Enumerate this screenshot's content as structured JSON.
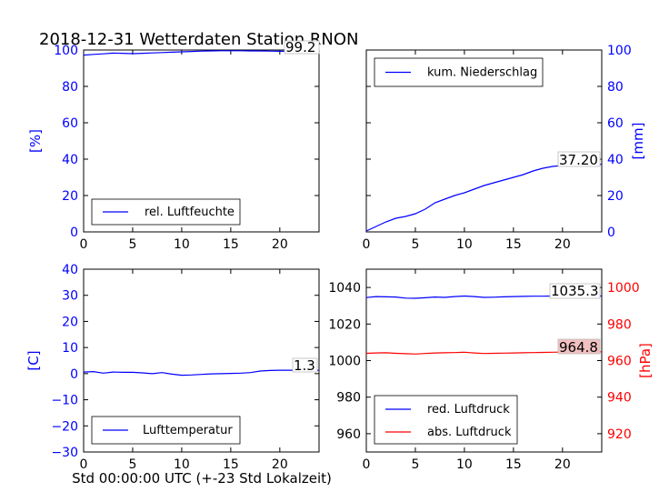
{
  "title": "2018-12-31 Wetterdaten Station RNON",
  "x_axis_label": "Std 00:00:00 UTC (+-23 Std Lokalzeit)",
  "colors": {
    "blue": "#0000ff",
    "red": "#ff0000",
    "text": "#000000",
    "callout_red_bg": "#f2c0c0"
  },
  "chart_data": [
    {
      "id": "humidity",
      "type": "line",
      "xlim": [
        0,
        24
      ],
      "ylim": [
        0,
        100
      ],
      "x_ticks": [
        0,
        5,
        10,
        15,
        20
      ],
      "y_ticks": [
        0,
        20,
        40,
        60,
        80,
        100
      ],
      "ylabel": "[%]",
      "legend": "lower-left",
      "callout": "99.2",
      "series": [
        {
          "name": "rel. Luftfeuchte",
          "color": "#0000ff",
          "x": [
            0,
            1,
            2,
            3,
            4,
            5,
            6,
            7,
            8,
            9,
            10,
            11,
            12,
            13,
            14,
            15,
            16,
            17,
            18,
            19,
            20,
            21,
            22,
            23,
            24
          ],
          "y": [
            97.2,
            97.6,
            97.9,
            98.3,
            98.2,
            98.0,
            98.2,
            98.4,
            98.6,
            98.8,
            99.0,
            99.2,
            99.4,
            99.5,
            99.6,
            99.6,
            99.6,
            99.5,
            99.5,
            99.4,
            99.3,
            99.3,
            99.2,
            99.2,
            99.2
          ]
        }
      ]
    },
    {
      "id": "precip",
      "type": "line",
      "xlim": [
        0,
        24
      ],
      "ylim": [
        0,
        100
      ],
      "x_ticks": [
        0,
        5,
        10,
        15,
        20
      ],
      "y_ticks": [
        0,
        20,
        40,
        60,
        80,
        100
      ],
      "ylabel": "[mm]",
      "legend": "upper-left",
      "callout": "37.20",
      "series": [
        {
          "name": "kum. Niederschlag",
          "color": "#0000ff",
          "x": [
            0,
            1,
            2,
            3,
            4,
            5,
            6,
            7,
            8,
            9,
            10,
            11,
            12,
            13,
            14,
            15,
            16,
            17,
            18,
            19,
            20,
            21,
            22,
            23,
            24
          ],
          "y": [
            0.5,
            3.0,
            5.5,
            7.5,
            8.5,
            10.0,
            12.5,
            16.0,
            18.0,
            20.0,
            21.5,
            23.5,
            25.5,
            27.0,
            28.5,
            30.0,
            31.5,
            33.5,
            35.0,
            36.0,
            36.5,
            37.0,
            37.2,
            37.2,
            37.2
          ]
        }
      ]
    },
    {
      "id": "temperature",
      "type": "line",
      "xlim": [
        0,
        24
      ],
      "ylim": [
        -30,
        40
      ],
      "x_ticks": [
        0,
        5,
        10,
        15,
        20
      ],
      "y_ticks": [
        -30,
        -20,
        -10,
        0,
        10,
        20,
        30,
        40
      ],
      "y_tick_labels": [
        "−30",
        "−20",
        "−10",
        "0",
        "10",
        "20",
        "30",
        "40"
      ],
      "ylabel": "[C]",
      "legend": "lower-left",
      "callout": "1.3",
      "series": [
        {
          "name": "Lufttemperatur",
          "color": "#0000ff",
          "x": [
            0,
            1,
            2,
            3,
            4,
            5,
            6,
            7,
            8,
            9,
            10,
            11,
            12,
            13,
            14,
            15,
            16,
            17,
            18,
            19,
            20,
            21,
            22,
            23,
            24
          ],
          "y": [
            0.6,
            0.8,
            0.2,
            0.6,
            0.5,
            0.5,
            0.3,
            0.0,
            0.4,
            -0.2,
            -0.6,
            -0.5,
            -0.3,
            -0.1,
            0.0,
            0.1,
            0.2,
            0.4,
            1.0,
            1.2,
            1.3,
            1.3,
            1.3,
            1.3,
            1.3
          ]
        }
      ]
    },
    {
      "id": "pressure",
      "type": "line",
      "xlim": [
        0,
        24
      ],
      "ylim": [
        950,
        1050
      ],
      "x_ticks": [
        0,
        5,
        10,
        15,
        20
      ],
      "y_ticks": [
        960,
        980,
        1000,
        1020,
        1040
      ],
      "ylabel": "",
      "legend": "lower-left",
      "secondary_axis": {
        "ylim": [
          910,
          1010
        ],
        "ticks": [
          920,
          940,
          960,
          980,
          1000
        ],
        "label": "[hPa]",
        "color": "#ff0000"
      },
      "callouts": [
        "1035.3",
        "964.8"
      ],
      "series": [
        {
          "name": "red. Luftdruck",
          "color": "#0000ff",
          "axis": "left",
          "x": [
            0,
            1,
            2,
            3,
            4,
            5,
            6,
            7,
            8,
            9,
            10,
            11,
            12,
            13,
            14,
            15,
            16,
            17,
            18,
            19,
            20,
            21,
            22,
            23,
            24
          ],
          "y": [
            1034.5,
            1035.0,
            1034.9,
            1034.8,
            1034.2,
            1034.1,
            1034.4,
            1034.8,
            1034.6,
            1035.0,
            1035.3,
            1035.0,
            1034.6,
            1034.7,
            1034.9,
            1035.0,
            1035.1,
            1035.2,
            1035.2,
            1035.3,
            1035.5,
            1035.7,
            1035.6,
            1035.4,
            1035.3
          ]
        },
        {
          "name": "abs. Luftdruck",
          "color": "#ff0000",
          "axis": "right",
          "x": [
            0,
            1,
            2,
            3,
            4,
            5,
            6,
            7,
            8,
            9,
            10,
            11,
            12,
            13,
            14,
            15,
            16,
            17,
            18,
            19,
            20,
            21,
            22,
            23,
            24
          ],
          "y": [
            964.0,
            964.2,
            964.3,
            964.0,
            963.8,
            963.6,
            963.9,
            964.2,
            964.3,
            964.4,
            964.6,
            964.2,
            963.9,
            964.0,
            964.1,
            964.2,
            964.3,
            964.4,
            964.5,
            964.6,
            964.7,
            964.8,
            964.8,
            964.8,
            964.8
          ]
        }
      ]
    }
  ]
}
